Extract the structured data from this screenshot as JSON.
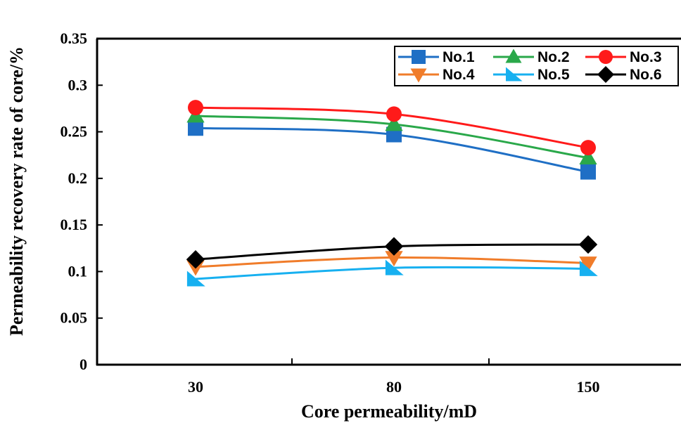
{
  "chart_data": {
    "type": "line",
    "categories": [
      "30",
      "80",
      "150"
    ],
    "xlabel": "Core permeability/mD",
    "ylabel": "Permeability recovery rate of core/%",
    "ylim": [
      0,
      0.35
    ],
    "yticks": [
      "0",
      "0.05",
      "0.1",
      "0.15",
      "0.2",
      "0.25",
      "0.3",
      "0.35"
    ],
    "grid": false,
    "legend_position": "top-right",
    "series": [
      {
        "name": "No.1",
        "values": [
          0.254,
          0.247,
          0.207
        ],
        "color": "#1f6fc5",
        "marker": "square"
      },
      {
        "name": "No.2",
        "values": [
          0.267,
          0.258,
          0.222
        ],
        "color": "#2aa84a",
        "marker": "triangle-up"
      },
      {
        "name": "No.3",
        "values": [
          0.276,
          0.269,
          0.233
        ],
        "color": "#ff1a1a",
        "marker": "circle"
      },
      {
        "name": "No.4",
        "values": [
          0.105,
          0.115,
          0.109
        ],
        "color": "#f07c2a",
        "marker": "triangle-down"
      },
      {
        "name": "No.5",
        "values": [
          0.092,
          0.104,
          0.103
        ],
        "color": "#17b0f0",
        "marker": "triangle-right"
      },
      {
        "name": "No.6",
        "values": [
          0.113,
          0.127,
          0.129
        ],
        "color": "#000000",
        "marker": "diamond"
      }
    ]
  }
}
